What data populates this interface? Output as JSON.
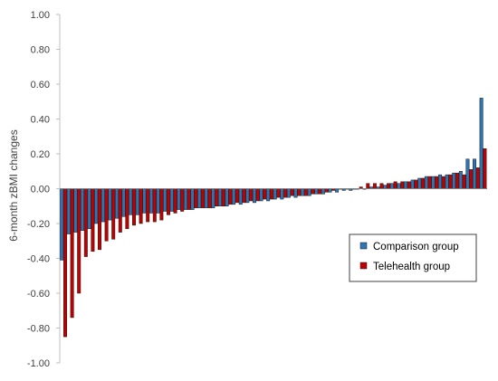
{
  "chart_data": {
    "type": "bar",
    "title": "",
    "xlabel": "",
    "ylabel": "6-month zBMI changes",
    "ylim": [
      -1.0,
      1.0
    ],
    "yticks": [
      "1.00",
      "0.80",
      "0.60",
      "0.40",
      "0.20",
      "0.00",
      "-0.20",
      "-0.40",
      "-0.60",
      "-0.80",
      "-1.00"
    ],
    "ytick_values": [
      1.0,
      0.8,
      0.6,
      0.4,
      0.2,
      0.0,
      -0.2,
      -0.4,
      -0.6,
      -0.8,
      -1.0
    ],
    "grid": false,
    "legend_position": "lower-right",
    "series": [
      {
        "name": "Comparison group",
        "color": "#2e75b6",
        "values": [
          -0.41,
          -0.26,
          -0.25,
          -0.24,
          -0.23,
          -0.2,
          -0.19,
          -0.18,
          -0.17,
          -0.16,
          -0.15,
          -0.15,
          -0.14,
          -0.14,
          -0.14,
          -0.13,
          -0.13,
          -0.12,
          -0.12,
          -0.12,
          -0.11,
          -0.11,
          -0.11,
          -0.1,
          -0.1,
          -0.09,
          -0.09,
          -0.08,
          -0.08,
          -0.07,
          -0.07,
          -0.06,
          -0.06,
          -0.05,
          -0.05,
          -0.04,
          -0.04,
          -0.03,
          -0.03,
          -0.02,
          -0.02,
          -0.01,
          -0.01,
          0.0,
          0.0,
          0.01,
          0.01,
          0.02,
          0.03,
          0.03,
          0.04,
          0.05,
          0.06,
          0.07,
          0.07,
          0.08,
          0.08,
          0.09,
          0.1,
          0.17,
          0.17,
          0.52
        ]
      },
      {
        "name": "Telehealth group",
        "color": "#c00000",
        "values": [
          -0.85,
          -0.74,
          -0.6,
          -0.39,
          -0.36,
          -0.35,
          -0.3,
          -0.29,
          -0.25,
          -0.23,
          -0.21,
          -0.2,
          -0.19,
          -0.19,
          -0.18,
          -0.15,
          -0.14,
          -0.13,
          -0.12,
          -0.11,
          -0.11,
          -0.11,
          -0.1,
          -0.1,
          -0.09,
          -0.08,
          -0.08,
          -0.07,
          -0.07,
          -0.06,
          -0.06,
          -0.05,
          -0.05,
          -0.04,
          -0.04,
          -0.04,
          -0.03,
          -0.03,
          -0.02,
          -0.01,
          0.0,
          0.0,
          0.0,
          0.01,
          0.03,
          0.03,
          0.03,
          0.03,
          0.04,
          0.04,
          0.04,
          0.05,
          0.06,
          0.07,
          0.07,
          0.07,
          0.08,
          0.09,
          0.08,
          0.11,
          0.12,
          0.23
        ]
      }
    ]
  }
}
